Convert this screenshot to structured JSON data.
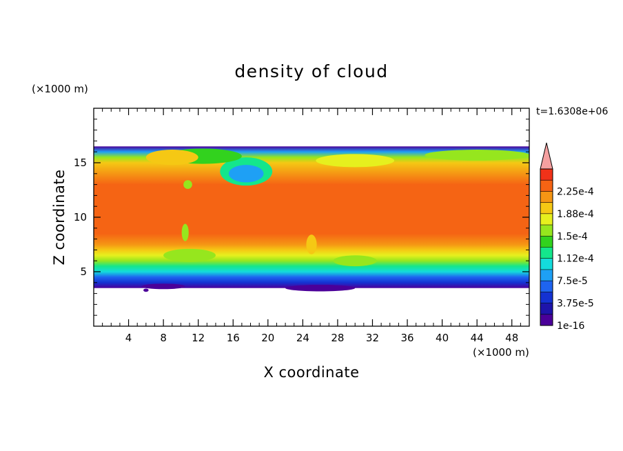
{
  "chart_data": {
    "type": "heatmap",
    "title": "density of cloud",
    "xlabel": "X coordinate",
    "ylabel": "Z coordinate",
    "x_unit_label": "(×1000 m)",
    "y_unit_label": "(×1000 m)",
    "time_label": "t=1.6308e+06",
    "xlim": [
      0,
      50
    ],
    "ylim": [
      0,
      20
    ],
    "x_ticks": [
      4,
      8,
      12,
      16,
      20,
      24,
      28,
      32,
      36,
      40,
      44,
      48
    ],
    "y_ticks": [
      5,
      10,
      15
    ],
    "x_tick_labels": [
      "4",
      "8",
      "12",
      "16",
      "20",
      "24",
      "28",
      "32",
      "36",
      "40",
      "44",
      "48"
    ],
    "y_tick_labels": [
      "5",
      "10",
      "15"
    ],
    "cloud_layer": {
      "base_km": 3.5,
      "top_km": 16.5,
      "core_range_km": [
        7.5,
        14
      ],
      "core_value": 0.00023
    },
    "vertical_profile": [
      {
        "z": 3.5,
        "value": 1e-16
      },
      {
        "z": 4.0,
        "value": 3.75e-05
      },
      {
        "z": 4.5,
        "value": 6.5e-05
      },
      {
        "z": 5.0,
        "value": 0.0001
      },
      {
        "z": 5.5,
        "value": 0.00013
      },
      {
        "z": 6.0,
        "value": 0.000155
      },
      {
        "z": 6.5,
        "value": 0.000175
      },
      {
        "z": 7.0,
        "value": 0.000195
      },
      {
        "z": 7.5,
        "value": 0.00021
      },
      {
        "z": 8.5,
        "value": 0.000225
      },
      {
        "z": 10.0,
        "value": 0.00023
      },
      {
        "z": 13.0,
        "value": 0.00023
      },
      {
        "z": 14.0,
        "value": 0.00022
      },
      {
        "z": 15.0,
        "value": 0.0002
      },
      {
        "z": 15.5,
        "value": 0.00016
      },
      {
        "z": 16.0,
        "value": 9e-05
      },
      {
        "z": 16.5,
        "value": 1e-16
      }
    ],
    "colorbar": {
      "levels": [
        1e-16,
        1.875e-05,
        3.75e-05,
        5.625e-05,
        7.5e-05,
        9.375e-05,
        0.0001125,
        0.00013125,
        0.00015,
        0.00016875,
        0.0001875,
        0.00020625,
        0.000225,
        0.00024375
      ],
      "tick_labels": [
        "1e-16",
        "3.75e-5",
        "7.5e-5",
        "1.12e-4",
        "1.5e-4",
        "1.88e-4",
        "2.25e-4"
      ],
      "colors": [
        "#4b0099",
        "#1e14aa",
        "#1432d2",
        "#1e64f0",
        "#1ea0f5",
        "#14dcdc",
        "#14e68c",
        "#32d21e",
        "#96e61e",
        "#e6f01e",
        "#f5c814",
        "#f59614",
        "#f56414",
        "#f03219"
      ],
      "extend_color": "#f5a0a0",
      "extend": "max"
    }
  }
}
